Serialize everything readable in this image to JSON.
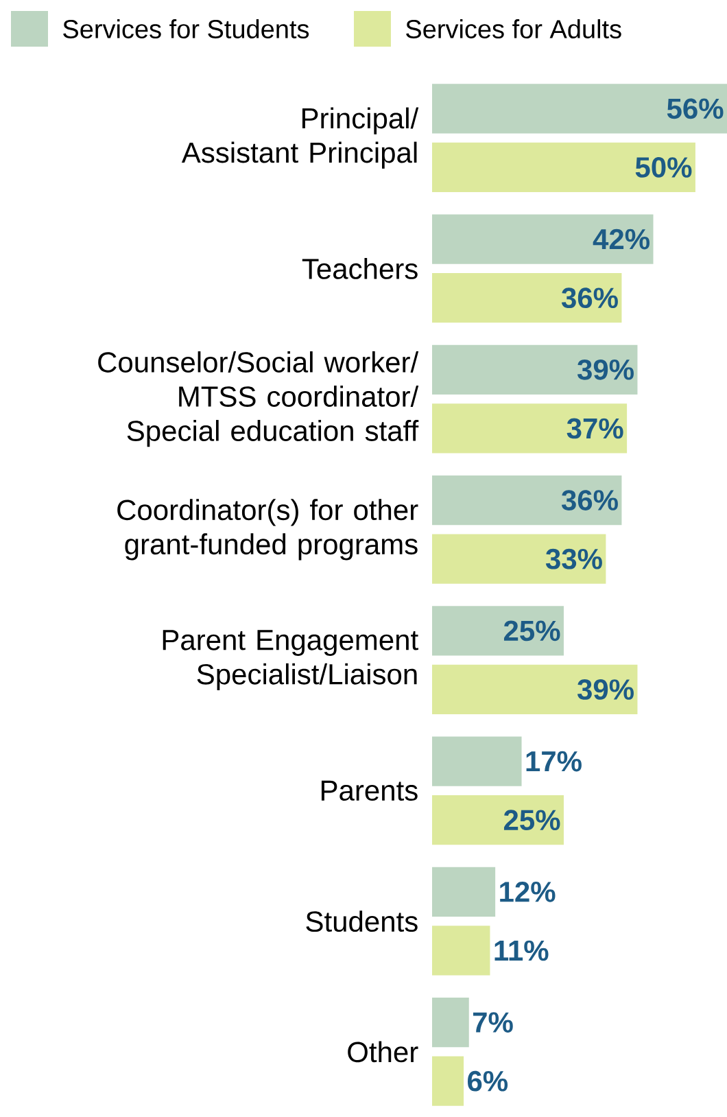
{
  "chart_data": {
    "type": "bar",
    "orientation": "horizontal",
    "legend": "top",
    "categories": [
      "Principal/ Assistant Principal",
      "Teachers",
      "Counselor/Social worker/ MTSS coordinator/ Special education staff",
      "Coordinator(s) for other grant-funded programs",
      "Parent Engagement Specialist/Liaison",
      "Parents",
      "Students",
      "Other"
    ],
    "series": [
      {
        "name": "Services for Students",
        "color": "#bcd5c1",
        "values": [
          56,
          42,
          39,
          36,
          25,
          17,
          12,
          7
        ],
        "value_labels": [
          "56%",
          "42%",
          "39%",
          "36%",
          "25%",
          "17%",
          "12%",
          "7%"
        ]
      },
      {
        "name": "Services for Adults",
        "color": "#dde99c",
        "values": [
          50,
          36,
          37,
          33,
          39,
          25,
          11,
          6
        ],
        "value_labels": [
          "50%",
          "36%",
          "37%",
          "33%",
          "39%",
          "25%",
          "11%",
          "6%"
        ]
      }
    ]
  }
}
